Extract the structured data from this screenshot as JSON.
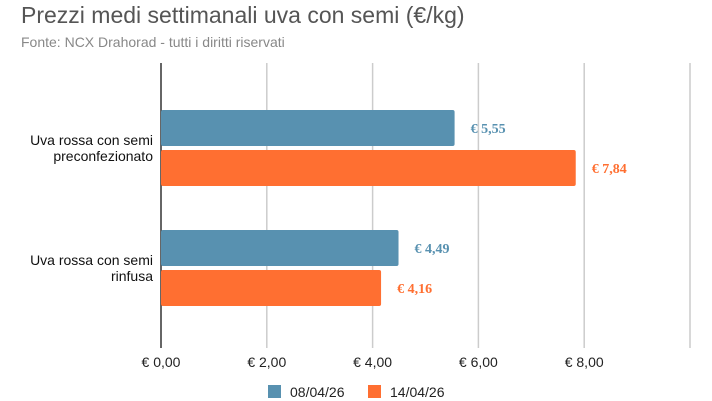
{
  "chart_data": {
    "type": "bar",
    "orientation": "horizontal",
    "title": "Prezzi medi settimanali uva con semi (€/kg)",
    "subtitle": "Fonte: NCX Drahorad - tutti i diritti riservati",
    "categories": [
      [
        "Uva rossa con semi",
        "preconfezionato"
      ],
      [
        "Uva rossa con semi",
        "rinfusa"
      ]
    ],
    "series": [
      {
        "name": "08/04/26",
        "color": "#5891b0",
        "values": [
          5.55,
          4.49
        ],
        "labels": [
          "€ 5,55",
          "€ 4,49"
        ]
      },
      {
        "name": "14/04/26",
        "color": "#ff6f31",
        "values": [
          7.84,
          4.16
        ],
        "labels": [
          "€ 7,84",
          "€ 4,16"
        ]
      }
    ],
    "xlim": [
      0,
      10
    ],
    "ticks": [
      0,
      2,
      4,
      6,
      8,
      10
    ],
    "tick_labels": [
      "€ 0,00",
      "€ 2,00",
      "€ 4,00",
      "€ 6,00",
      "€ 8,00",
      ""
    ],
    "grid": true,
    "legend": "bottom"
  }
}
